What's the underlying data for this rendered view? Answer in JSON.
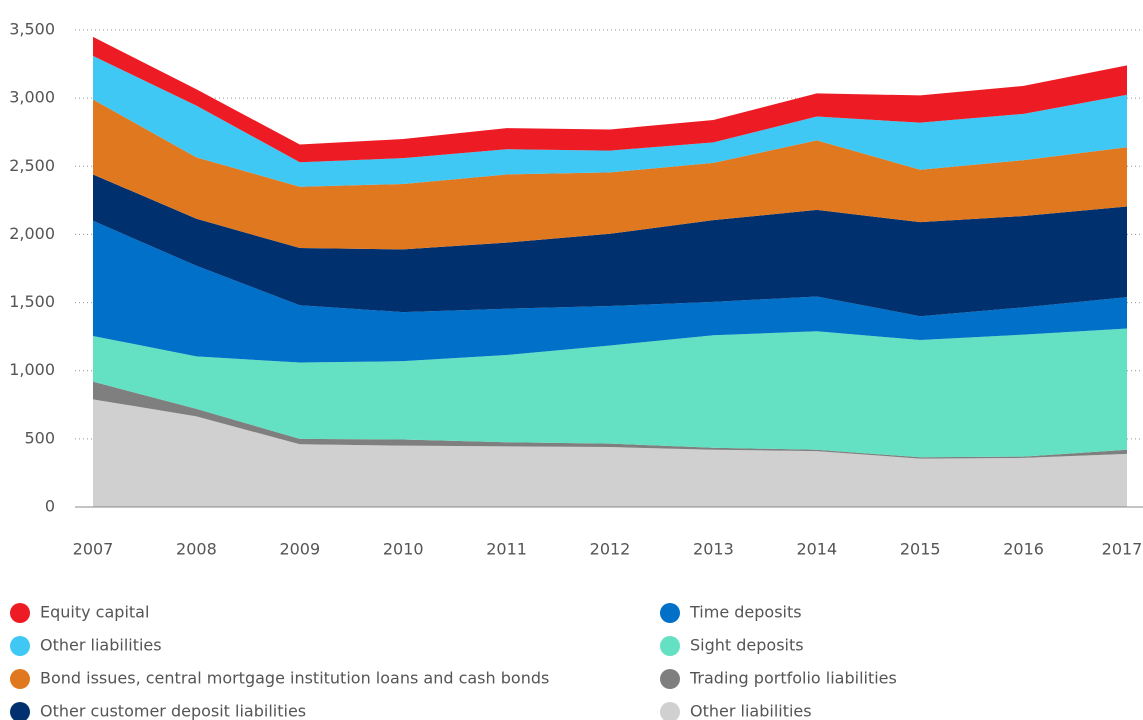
{
  "chart_data": {
    "type": "stacked_area",
    "categories": [
      "2007",
      "2008",
      "2009",
      "2010",
      "2011",
      "2012",
      "2013",
      "2014",
      "2015",
      "2016",
      "2017"
    ],
    "series": [
      {
        "name": "Equity capital",
        "color": "#ed1c24",
        "values": [
          140,
          120,
          130,
          140,
          155,
          155,
          165,
          170,
          200,
          205,
          215
        ]
      },
      {
        "name": "Other liabilities",
        "color": "#40c8f4",
        "values": [
          320,
          380,
          180,
          190,
          185,
          160,
          150,
          175,
          345,
          340,
          385
        ]
      },
      {
        "name": "Bond issues, central mortgage institution loans and cash bonds",
        "color": "#e07820",
        "values": [
          550,
          450,
          450,
          480,
          500,
          450,
          420,
          510,
          385,
          410,
          435
        ]
      },
      {
        "name": "Other customer deposit liabilities",
        "color": "#00306e",
        "values": [
          340,
          345,
          420,
          460,
          485,
          530,
          600,
          635,
          690,
          670,
          665
        ]
      },
      {
        "name": "Time deposits",
        "color": "#0070c8",
        "values": [
          845,
          665,
          420,
          360,
          340,
          290,
          245,
          255,
          175,
          200,
          230
        ]
      },
      {
        "name": "Sight deposits",
        "color": "#64e0c2",
        "values": [
          335,
          385,
          560,
          575,
          640,
          720,
          825,
          870,
          860,
          895,
          890
        ]
      },
      {
        "name": "Trading portfolio liabilities",
        "color": "#7f7f7f",
        "values": [
          130,
          55,
          40,
          45,
          30,
          25,
          15,
          10,
          10,
          10,
          30
        ]
      },
      {
        "name": "Other liabilities",
        "color": "#d0d0d0",
        "values": [
          790,
          665,
          460,
          450,
          445,
          440,
          420,
          410,
          355,
          360,
          390
        ]
      }
    ],
    "ylim": [
      0,
      3500
    ],
    "yticks": [
      0,
      500,
      {
        "value": 1000,
        "label": "1,000"
      },
      {
        "value": 1500,
        "label": "1,500"
      },
      {
        "value": 2000,
        "label": "2,000"
      },
      {
        "value": 2500,
        "label": "2,500"
      },
      {
        "value": 3000,
        "label": "3,000"
      },
      {
        "value": 3500,
        "label": "3,500"
      }
    ],
    "grid": true
  }
}
